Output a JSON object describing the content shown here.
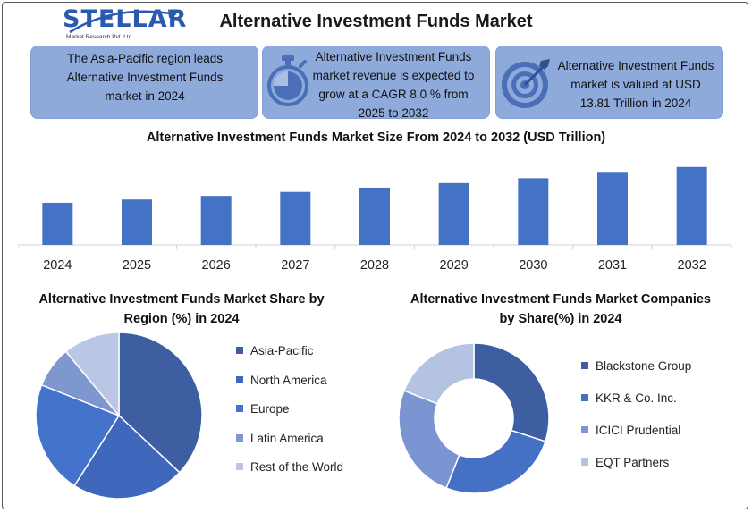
{
  "brand": {
    "name": "STELLAR",
    "tagline": "Market Research Pvt. Ltd."
  },
  "title": "Alternative Investment Funds Market",
  "cards": [
    {
      "text": "The Asia-Pacific region leads Alternative Investment Funds market in 2024",
      "icon": "none"
    },
    {
      "text": "Alternative Investment Funds market revenue is expected to grow at a CAGR 8.0 % from 2025 to 2032",
      "icon": "stopwatch-icon"
    },
    {
      "text": "Alternative Investment Funds market is valued at USD 13.81 Trillion in 2024",
      "icon": "target-icon"
    }
  ],
  "colors": {
    "accent": "#4472c4",
    "card": "#8eaadb",
    "text": "#111111"
  },
  "chart_data": [
    {
      "type": "bar",
      "title": "Alternative Investment Funds Market Size From 2024 to 2032 (USD Trillion)",
      "categories": [
        "2024",
        "2025",
        "2026",
        "2027",
        "2028",
        "2029",
        "2030",
        "2031",
        "2032"
      ],
      "values": [
        13.81,
        14.9,
        16.1,
        17.4,
        18.8,
        20.3,
        21.9,
        23.7,
        25.6
      ],
      "ylim": [
        0,
        27
      ],
      "xlabel": "",
      "ylabel": "",
      "grid": false,
      "color": "#4472c4"
    },
    {
      "type": "pie",
      "title": "Alternative Investment Funds Market Share by Region (%) in 2024",
      "labels": [
        "Asia-Pacific",
        "North America",
        "Europe",
        "Latin America",
        "Rest of the World"
      ],
      "values": [
        37,
        22,
        22,
        8,
        11
      ],
      "colors": [
        "#3d5fa1",
        "#3f68bc",
        "#4473cc",
        "#7f97cf",
        "#b9c6e4"
      ],
      "legend": "right"
    },
    {
      "type": "pie",
      "title": "Alternative Investment Funds Market Companies by Share(%) in 2024",
      "labels": [
        "Blackstone Group",
        "KKR & Co. Inc.",
        "ICICI Prudential",
        "EQT Partners"
      ],
      "values": [
        30,
        26,
        25,
        19
      ],
      "colors": [
        "#3d5fa1",
        "#4470c6",
        "#7b95d2",
        "#b5c3e3"
      ],
      "legend": "right",
      "donut": true
    }
  ]
}
